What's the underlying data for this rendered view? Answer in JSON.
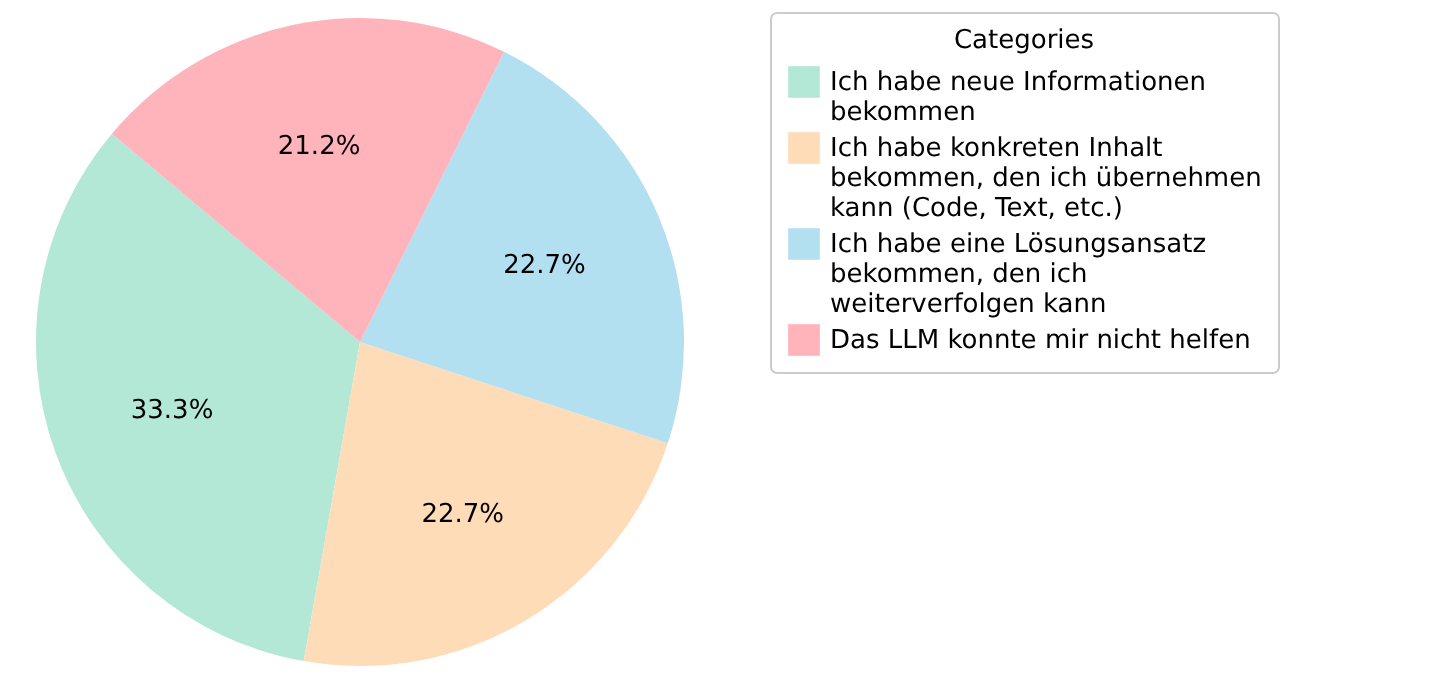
{
  "chart_data": {
    "type": "pie",
    "legend_title": "Categories",
    "legend": "right",
    "categories": [
      "Ich habe neue Informationen\n bekommen",
      "Ich habe konkreten Inhalt\n bekommen, den ich übernehmen\n kann (Code, Text, etc.)",
      "Ich habe eine Lösungsansatz\n bekommen, den ich\n weiterverfolgen kann",
      "Das LLM konnte mir nicht helfen"
    ],
    "values": [
      33.3,
      22.7,
      22.7,
      21.2
    ],
    "value_labels": [
      "33.3%",
      "22.7%",
      "22.7%",
      "21.2%"
    ],
    "colors": [
      "#b3e8d6",
      "#ffdcb8",
      "#b3e0f0",
      "#ffb3ba"
    ]
  }
}
